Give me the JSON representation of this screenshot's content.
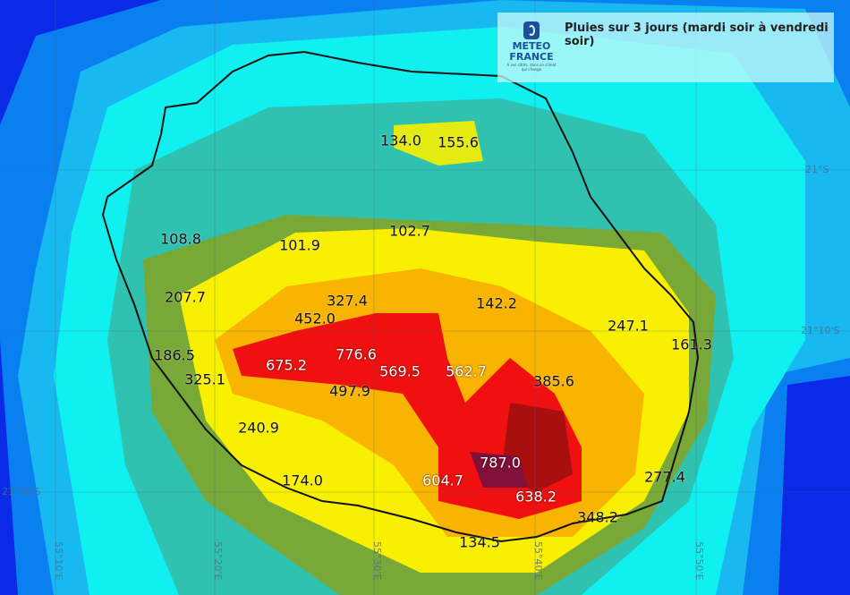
{
  "title": "Pluies sur 3 jours (mardi soir à vendredi soir)",
  "logo": {
    "line1": "METEO",
    "line2": "FRANCE",
    "tagline": "Á vos côtés, dans un climat qui change"
  },
  "colors": {
    "deep_blue": "#0a2ae8",
    "blue": "#0a80f0",
    "light_blue": "#18b8f0",
    "cyan": "#10f0f0",
    "teal": "#30c2b0",
    "olive": "#78a838",
    "yellow": "#f8f000",
    "orange": "#f8b400",
    "red": "#f01010",
    "dark_red": "#a81010",
    "maroon": "#80103a",
    "coastline": "#111111"
  },
  "latitude_labels": [
    "21°S",
    "21°10'S",
    "21°20'S"
  ],
  "longitude_labels": [
    "55°10'E",
    "55°20'E",
    "55°30'E",
    "55°40'E",
    "55°50'E"
  ],
  "rain_values": [
    "134.0",
    "155.6",
    "108.8",
    "101.9",
    "102.7",
    "207.7",
    "327.4",
    "452.0",
    "142.2",
    "247.1",
    "161.3",
    "186.5",
    "675.2",
    "776.6",
    "569.5",
    "562.7",
    "385.6",
    "325.1",
    "497.9",
    "240.9",
    "787.0",
    "174.0",
    "604.7",
    "638.2",
    "277.4",
    "348.2",
    "134.5"
  ]
}
